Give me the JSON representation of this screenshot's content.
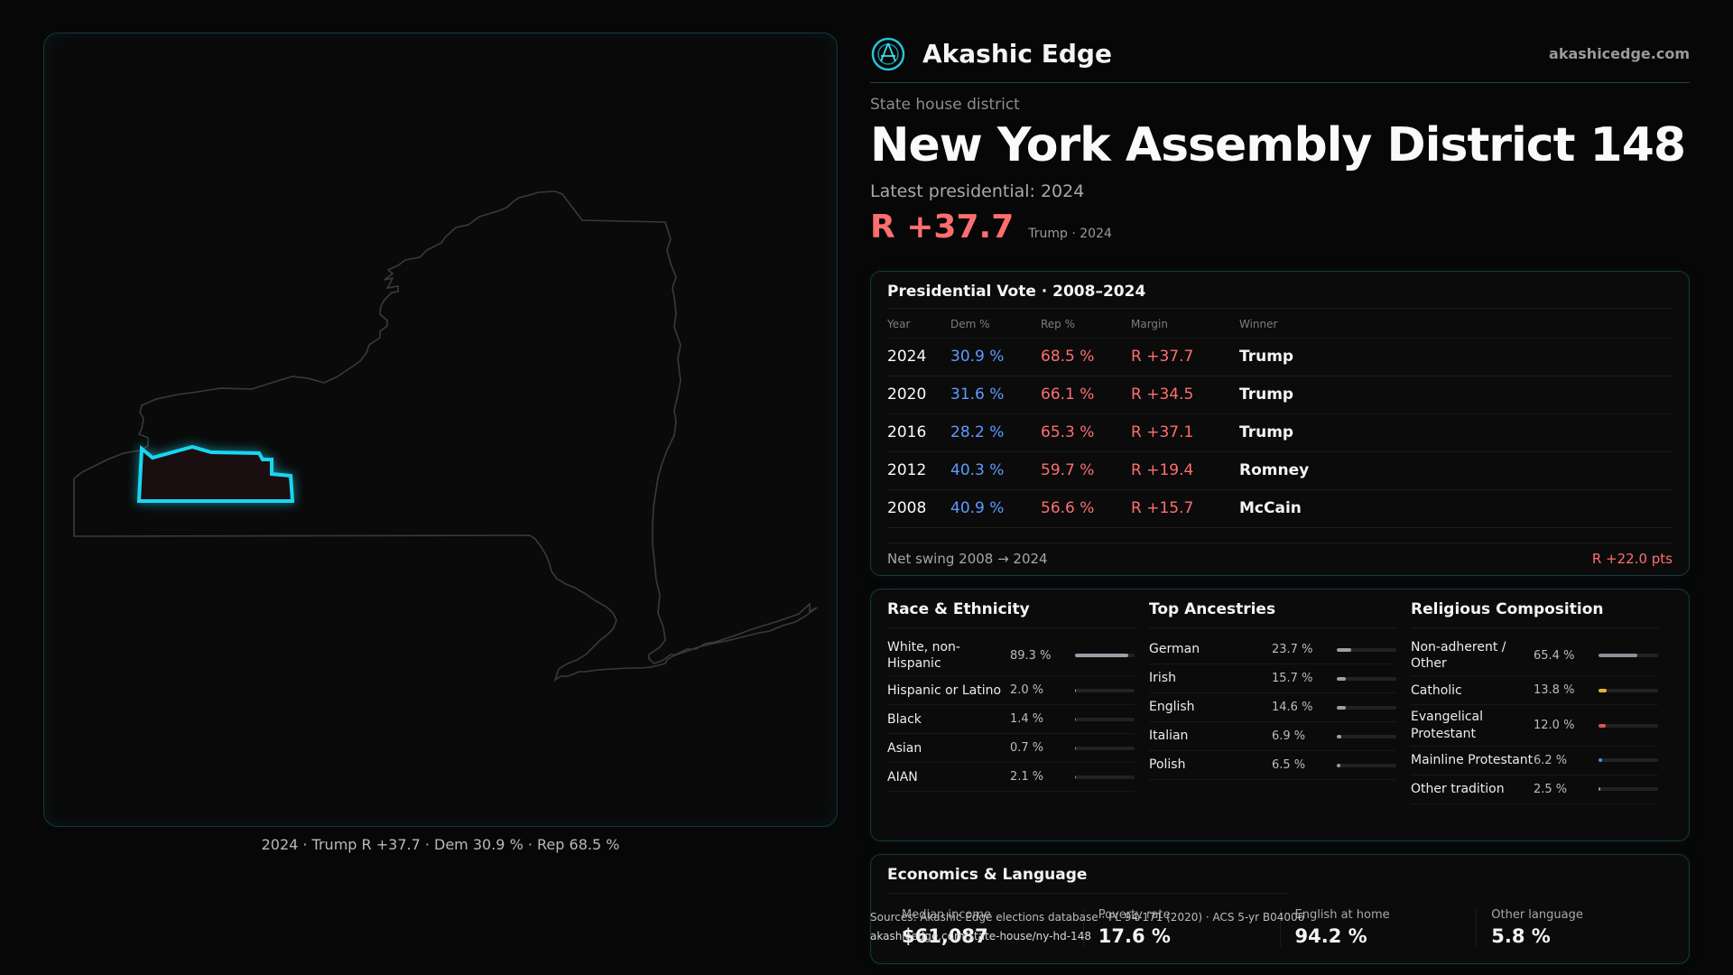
{
  "map": {
    "caption": "2024 · Trump R +37.7 · Dem 30.9 % · Rep 68.5 %"
  },
  "brand": {
    "name": "Akashic Edge",
    "url": "akashicedge.com"
  },
  "header": {
    "eyebrow": "State house district",
    "title": "New York  Assembly District 148",
    "subtitle": "Latest presidential: 2024",
    "margin": "R +37.7",
    "note": "Trump · 2024"
  },
  "presidential": {
    "title": "Presidential Vote · 2008–2024",
    "columns": [
      "Year",
      "Dem %",
      "Rep %",
      "Margin",
      "Winner"
    ],
    "rows": [
      {
        "year": "2024",
        "dem": "30.9 %",
        "rep": "68.5 %",
        "margin": "R +37.7",
        "winner": "Trump"
      },
      {
        "year": "2020",
        "dem": "31.6 %",
        "rep": "66.1 %",
        "margin": "R +34.5",
        "winner": "Trump"
      },
      {
        "year": "2016",
        "dem": "28.2 %",
        "rep": "65.3 %",
        "margin": "R +37.1",
        "winner": "Trump"
      },
      {
        "year": "2012",
        "dem": "40.3 %",
        "rep": "59.7 %",
        "margin": "R +19.4",
        "winner": "Romney"
      },
      {
        "year": "2008",
        "dem": "40.9 %",
        "rep": "56.6 %",
        "margin": "R +15.7",
        "winner": "McCain"
      }
    ],
    "swing_label": "Net swing 2008 → 2024",
    "swing_value": "R +22.0 pts"
  },
  "race": {
    "title": "Race & Ethnicity",
    "rows": [
      {
        "label": "White, non-Hispanic",
        "pct": "89.3 %",
        "share": 0.893,
        "color": "#9aa0aa"
      },
      {
        "label": "Hispanic or Latino",
        "pct": "2.0 %",
        "share": 0.02,
        "color": "#d9a03a"
      },
      {
        "label": "Black",
        "pct": "1.4 %",
        "share": 0.014,
        "color": "#6e78d8"
      },
      {
        "label": "Asian",
        "pct": "0.7 %",
        "share": 0.007,
        "color": "#3fbf8f"
      },
      {
        "label": "AIAN",
        "pct": "2.1 %",
        "share": 0.021,
        "color": "#e0703a"
      }
    ]
  },
  "ancestry": {
    "title": "Top Ancestries",
    "rows": [
      {
        "label": "German",
        "pct": "23.7 %",
        "share": 0.237,
        "color": "#9aa0aa"
      },
      {
        "label": "Irish",
        "pct": "15.7 %",
        "share": 0.157,
        "color": "#9aa0aa"
      },
      {
        "label": "English",
        "pct": "14.6 %",
        "share": 0.146,
        "color": "#9aa0aa"
      },
      {
        "label": "Italian",
        "pct": "6.9 %",
        "share": 0.069,
        "color": "#9aa0aa"
      },
      {
        "label": "Polish",
        "pct": "6.5 %",
        "share": 0.065,
        "color": "#9aa0aa"
      }
    ]
  },
  "religion": {
    "title": "Religious Composition",
    "rows": [
      {
        "label": "Non-adherent / Other",
        "pct": "65.4 %",
        "share": 0.654,
        "color": "#8a8f98"
      },
      {
        "label": "Catholic",
        "pct": "13.8 %",
        "share": 0.138,
        "color": "#e5b52a"
      },
      {
        "label": "Evangelical Protestant",
        "pct": "12.0 %",
        "share": 0.12,
        "color": "#e05555"
      },
      {
        "label": "Mainline Protestant",
        "pct": "6.2 %",
        "share": 0.062,
        "color": "#4f8fe8"
      },
      {
        "label": "Other tradition",
        "pct": "2.5 %",
        "share": 0.025,
        "color": "#9aa0aa"
      }
    ]
  },
  "economics": {
    "title": "Economics & Language",
    "metrics": [
      {
        "label": "Median income",
        "value": "$61,087"
      },
      {
        "label": "Poverty rate",
        "value": "17.6 %"
      },
      {
        "label": "English at home",
        "value": "94.2 %"
      },
      {
        "label": "Other language",
        "value": "5.8 %"
      }
    ]
  },
  "sources": {
    "line": "Sources: Akashic Edge elections database · PL 94-171 (2020) · ACS 5-yr B04006",
    "url": "akashicedge.com/state-house/ny-hd-148"
  }
}
